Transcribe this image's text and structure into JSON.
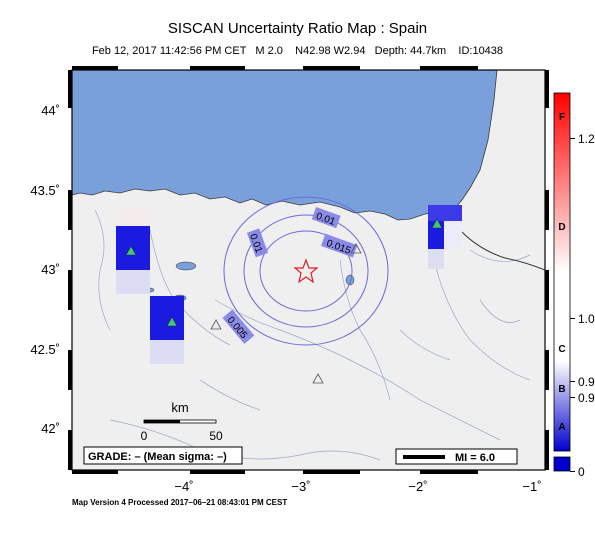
{
  "header": {
    "title": "SISCAN Uncertainty Ratio Map : Spain",
    "subtitle": "Feb 12, 2017 11:42:56 PM CET   M 2.0    N42.98 W2.94   Depth: 44.7km    ID:10438"
  },
  "map": {
    "lat_range": [
      41.75,
      44.4
    ],
    "lon_range": [
      -5.0,
      -0.95
    ],
    "lat_ticks": [
      "44˚",
      "43.5˚",
      "43˚",
      "42.5˚",
      "42˚"
    ],
    "lon_ticks": [
      "−4˚",
      "−3˚",
      "−2˚",
      "−1˚"
    ],
    "contour_labels": [
      "0.01",
      "0.01",
      "0.015",
      "0.005"
    ],
    "epicenter": {
      "lat": 42.98,
      "lon": -2.94
    },
    "scale_bar": {
      "unit": "km",
      "start": "0",
      "end": "50"
    },
    "grade_text": "GRADE: – (Mean sigma: –)",
    "mi_legend": "MI = 6.0",
    "colors": {
      "sea": "#7aa0dc",
      "land": "#efefef",
      "contour": "#6a6ad8",
      "epicenter": "#e02020",
      "station": "#3ec870"
    }
  },
  "colorbar": {
    "labels": [
      "1.2",
      "1.0",
      "0.9",
      "0.9",
      "0"
    ],
    "letters": [
      "F",
      "D",
      "C",
      "B",
      "A"
    ],
    "colors": {
      "top": "#ff0000",
      "mid": "#ffffff",
      "bottom": "#0000cc"
    }
  },
  "footer": {
    "text": "Map Version 4 Processed 2017–06–21 08:43:01 PM CEST"
  }
}
